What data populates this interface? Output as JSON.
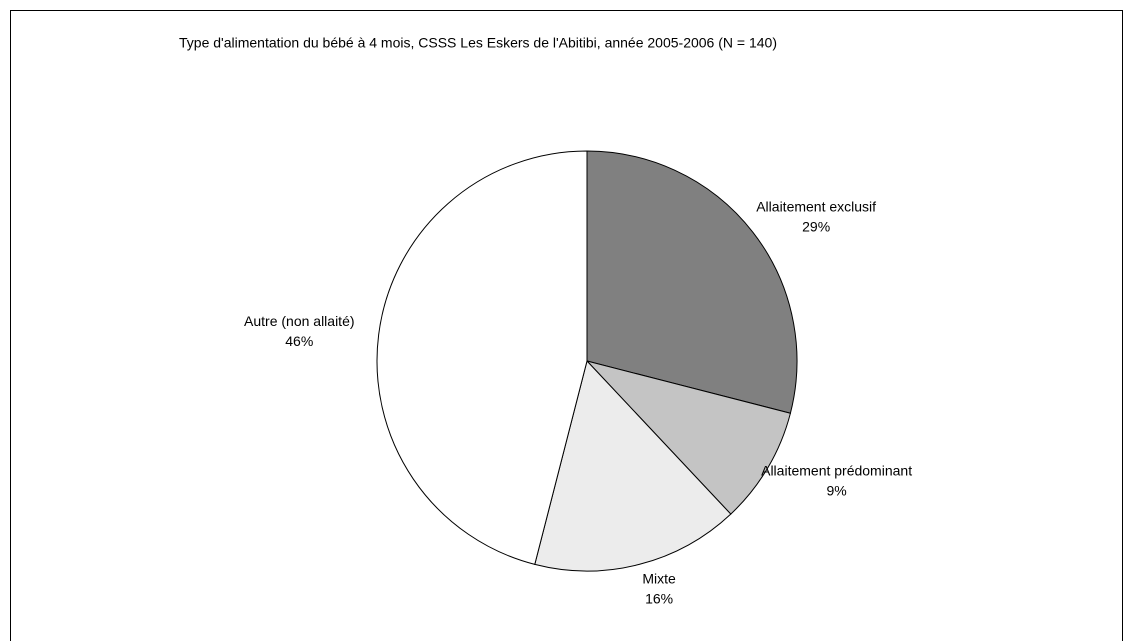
{
  "chart_data": {
    "type": "pie",
    "title": "Type d'alimentation du bébé à 4 mois, CSSS Les Eskers de l'Abitibi, année 2005-2006  (N = 140)",
    "categories": [
      "Allaitement exclusif",
      "Allaitement prédominant",
      "Mixte",
      "Autre (non allaité)"
    ],
    "values": [
      29,
      9,
      16,
      46
    ],
    "value_labels": [
      "29%",
      "9%",
      "16%",
      "46%"
    ],
    "colors": [
      "#808080",
      "#c4c4c4",
      "#ececec",
      "#ffffff"
    ]
  }
}
